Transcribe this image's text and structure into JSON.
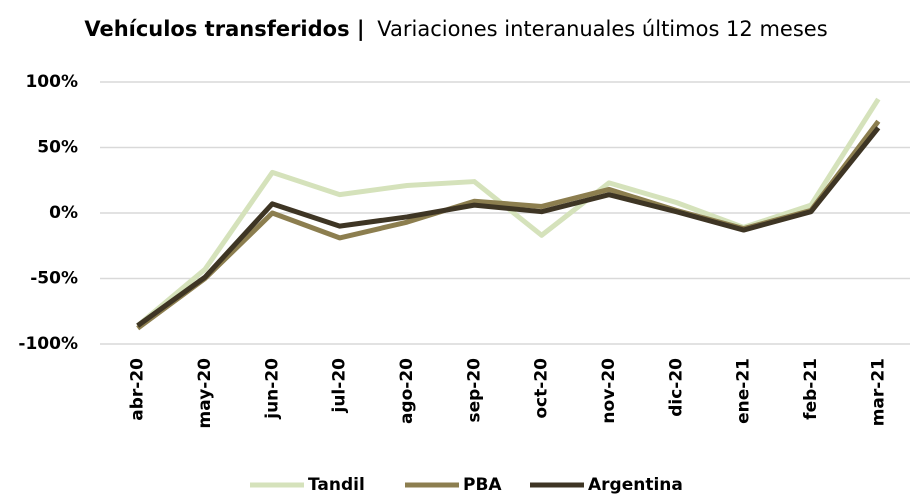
{
  "chart_data": {
    "type": "line",
    "title": "Vehículos transferidos |",
    "subtitle": "Variaciones interanuales últimos 12 meses",
    "categories": [
      "abr-20",
      "may-20",
      "jun-20",
      "jul-20",
      "ago-20",
      "sep-20",
      "oct-20",
      "nov-20",
      "dic-20",
      "ene-21",
      "feb-21",
      "mar-21"
    ],
    "series": [
      {
        "name": "Tandil",
        "color": "#d5e2bb",
        "values": [
          -86,
          -43,
          31,
          14,
          21,
          24,
          -17,
          23,
          8,
          -11,
          6,
          87
        ]
      },
      {
        "name": "PBA",
        "color": "#8c7e4f",
        "values": [
          -88,
          -50,
          0,
          -19,
          -7,
          9,
          5,
          18,
          2,
          -12,
          2,
          70
        ]
      },
      {
        "name": "Argentina",
        "color": "#3e3524",
        "values": [
          -86,
          -49,
          7,
          -10,
          -3,
          6,
          1,
          14,
          1,
          -13,
          1,
          65
        ]
      }
    ],
    "ylim": [
      -100,
      100
    ],
    "yticks": [
      {
        "value": -100,
        "label": "-100%"
      },
      {
        "value": -50,
        "label": "-50%"
      },
      {
        "value": 0,
        "label": "0%"
      },
      {
        "value": 50,
        "label": "50%"
      },
      {
        "value": 100,
        "label": "100%"
      }
    ],
    "grid": true,
    "legend": "bottom"
  }
}
